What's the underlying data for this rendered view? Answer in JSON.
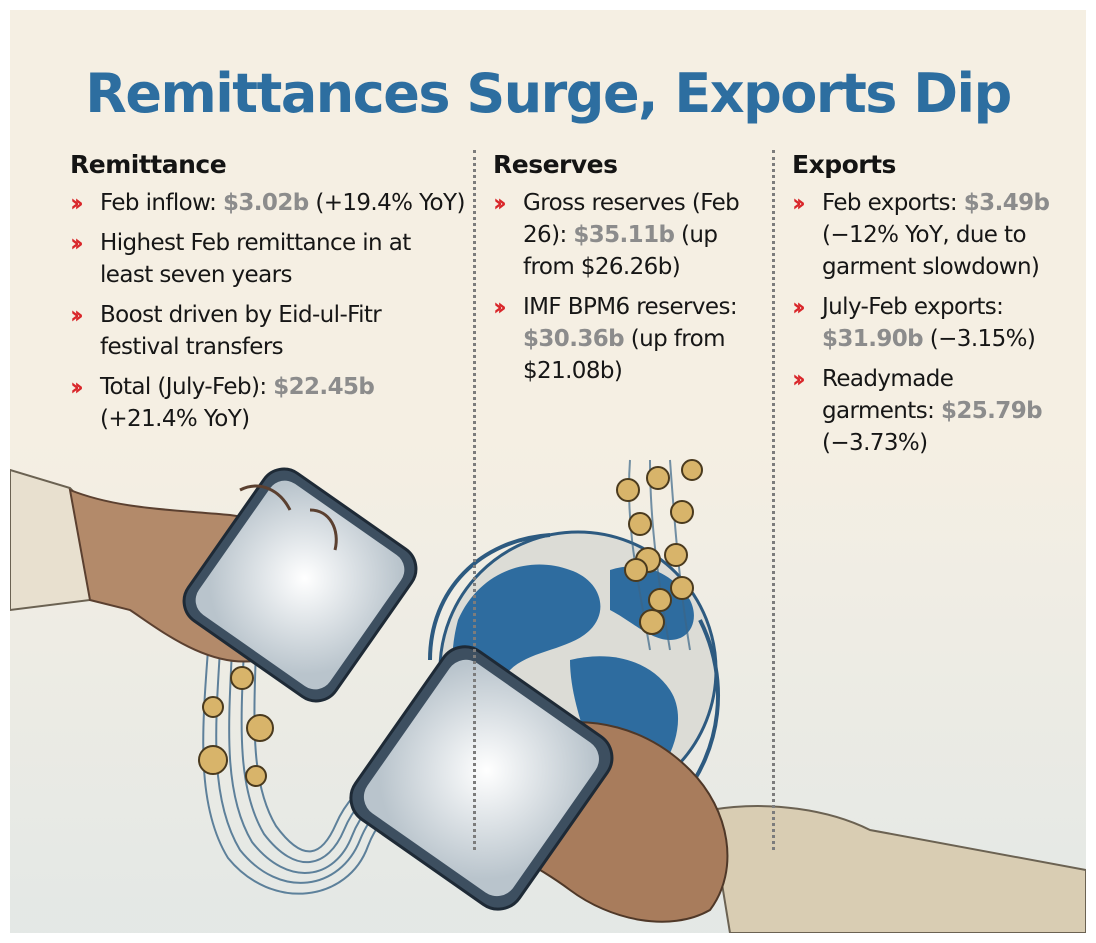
{
  "title": "Remittances Surge, Exports Dip",
  "colors": {
    "title": "#2d6ea0",
    "bullet": "#d9262a",
    "highlight": "#8c8c8c",
    "background": "#f5efe3"
  },
  "columns": [
    {
      "heading": "Remittance",
      "items": [
        {
          "pre": "Feb inflow: ",
          "value": "$3.02b",
          "post": " (+19.4% YoY)"
        },
        {
          "pre": "Highest Feb remittance in at least seven years",
          "value": "",
          "post": ""
        },
        {
          "pre": "Boost driven by Eid-ul-Fitr festival transfers",
          "value": "",
          "post": ""
        },
        {
          "pre": "Total (July-Feb): ",
          "value": "$22.45b",
          "post": " (+21.4% YoY)"
        }
      ]
    },
    {
      "heading": "Reserves",
      "items": [
        {
          "pre": "Gross reserves (Feb 26): ",
          "value": "$35.11b",
          "post": " (up from $26.26b)"
        },
        {
          "pre": "IMF BPM6 reserves: ",
          "value": "$30.36b",
          "post": " (up from $21.08b)"
        }
      ]
    },
    {
      "heading": "Exports",
      "items": [
        {
          "pre": "Feb exports: ",
          "value": "$3.49b",
          "post": " (−12% YoY, due to garment slowdown)"
        },
        {
          "pre": "July-Feb exports: ",
          "value": "$31.90b",
          "post": " (−3.15%)"
        },
        {
          "pre": "Readymade garments: ",
          "value": "$25.79b",
          "post": " (−3.73%)"
        }
      ]
    }
  ],
  "icons": {
    "bullet": "chevron-double-right-icon",
    "coin": "taka-coin-icon"
  }
}
